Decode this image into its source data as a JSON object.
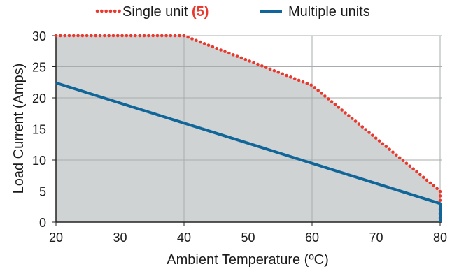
{
  "chart_data": {
    "type": "line",
    "xlabel": "Ambient Temperature (ºC)",
    "ylabel": "Load Current (Amps)",
    "xlim": [
      20,
      80
    ],
    "ylim": [
      0,
      30
    ],
    "x_ticks": [
      "20",
      "30",
      "40",
      "50",
      "60",
      "70",
      "80"
    ],
    "y_ticks": [
      "0",
      "5",
      "10",
      "15",
      "20",
      "25",
      "30"
    ],
    "grid": true,
    "legend_position": "top",
    "shaded_region": "under single unit curve",
    "series": [
      {
        "name": "Single unit",
        "legend_note": "(5)",
        "color": "#e8392e",
        "style": "dotted",
        "x": [
          20,
          40,
          60,
          80,
          80
        ],
        "y": [
          30,
          30,
          22,
          5,
          0
        ]
      },
      {
        "name": "Multiple units",
        "color": "#116699",
        "style": "solid",
        "x": [
          20,
          80,
          80
        ],
        "y": [
          22.4,
          3,
          0
        ]
      }
    ],
    "colors": {
      "fill": "#d0d3d4",
      "grid": "#a9acae",
      "axis": "#222222"
    }
  }
}
